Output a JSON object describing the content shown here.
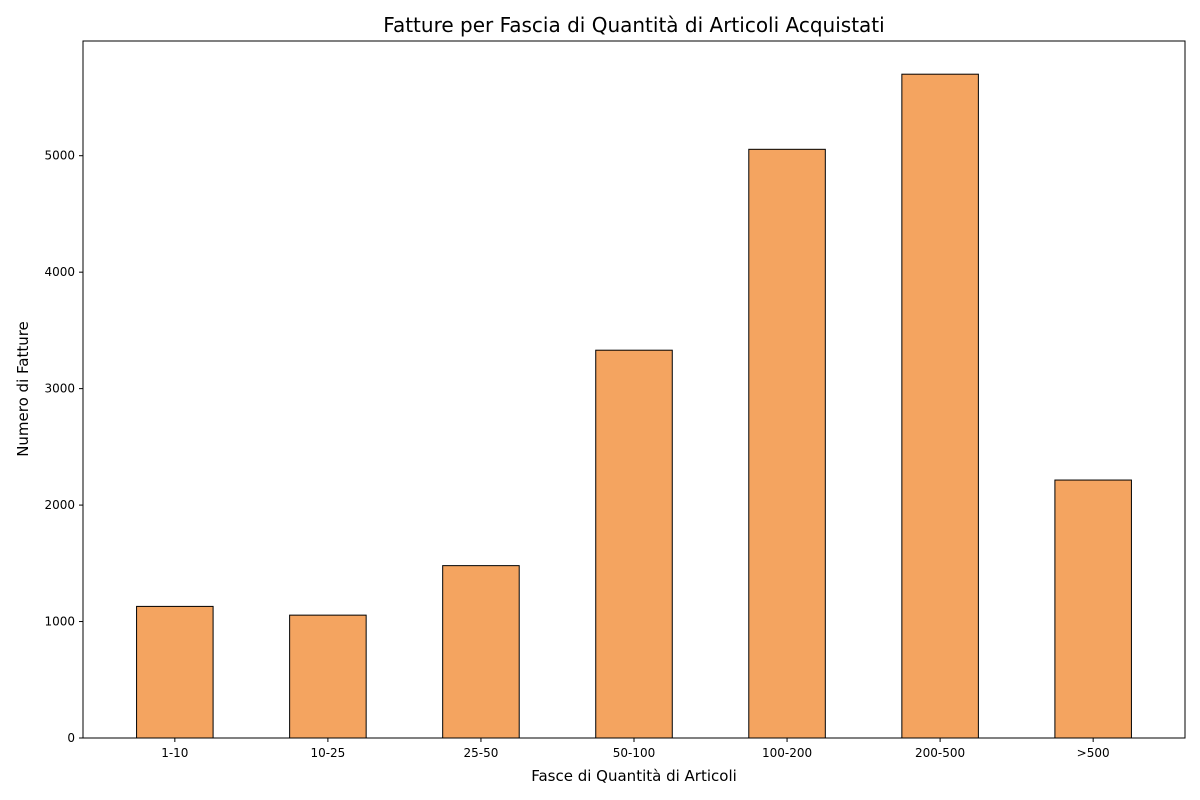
{
  "chart_data": {
    "type": "bar",
    "title": "Fatture per Fascia di Quantità di Articoli Acquistati",
    "xlabel": "Fasce di Quantità di Articoli",
    "ylabel": "Numero di Fatture",
    "categories": [
      "1-10",
      "10-25",
      "25-50",
      "50-100",
      "100-200",
      "200-500",
      ">500"
    ],
    "values": [
      1130,
      1055,
      1480,
      3330,
      5055,
      5700,
      2215
    ],
    "ylim": [
      0,
      5985
    ],
    "yticks": [
      0,
      1000,
      2000,
      3000,
      4000,
      5000
    ],
    "grid": false,
    "colors": {
      "bar_fill": "#f4a460",
      "bar_edge": "#000000"
    }
  }
}
